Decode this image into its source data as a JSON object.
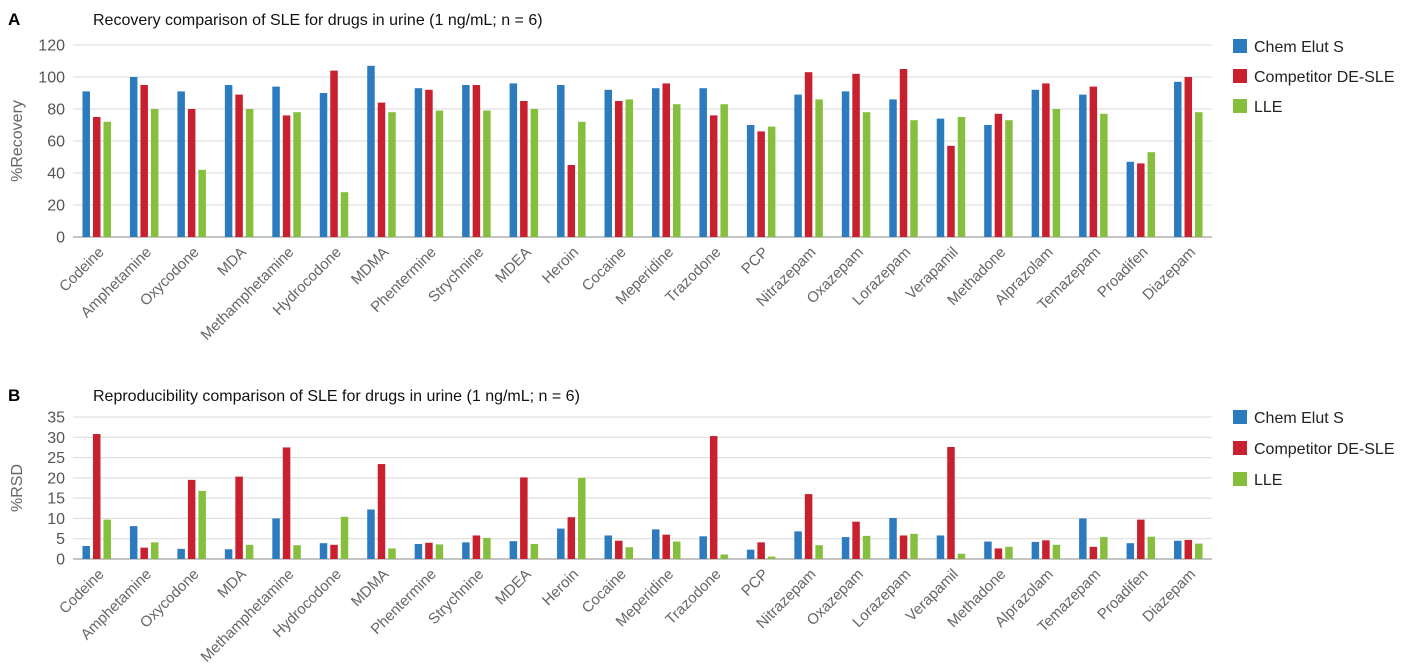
{
  "colors": {
    "chem_elut_s": "#2c7bbf",
    "competitor": "#c8202f",
    "lle": "#86bf3d"
  },
  "chart_data": [
    {
      "type": "bar",
      "panel": "A",
      "title": "Recovery comparison of SLE for drugs in urine (1 ng/mL; n = 6)",
      "ylabel": "%Recovery",
      "xlabel": "",
      "ylim": [
        0,
        120
      ],
      "yticks": [
        0,
        20,
        40,
        60,
        80,
        100,
        120
      ],
      "grid": true,
      "legend_position": "right",
      "categories": [
        "Codeine",
        "Amphetamine",
        "Oxycodone",
        "MDA",
        "Methamphetamine",
        "Hydrocodone",
        "MDMA",
        "Phentermine",
        "Strychnine",
        "MDEA",
        "Heroin",
        "Cocaine",
        "Meperidine",
        "Trazodone",
        "PCP",
        "Nitrazepam",
        "Oxazepam",
        "Lorazepam",
        "Verapamil",
        "Methadone",
        "Alprazolam",
        "Temazepam",
        "Proadifen",
        "Diazepam"
      ],
      "series": [
        {
          "name": "Chem Elut S",
          "color": "#2c7bbf",
          "values": [
            91,
            100,
            91,
            95,
            94,
            90,
            107,
            93,
            95,
            96,
            95,
            92,
            93,
            93,
            70,
            89,
            91,
            86,
            74,
            70,
            92,
            89,
            47,
            97
          ]
        },
        {
          "name": "Competitor DE-SLE",
          "color": "#c8202f",
          "values": [
            75,
            95,
            80,
            89,
            76,
            104,
            84,
            92,
            95,
            85,
            45,
            85,
            96,
            76,
            66,
            103,
            102,
            105,
            57,
            77,
            96,
            94,
            46,
            100
          ]
        },
        {
          "name": "LLE",
          "color": "#86bf3d",
          "values": [
            72,
            80,
            42,
            80,
            78,
            28,
            78,
            79,
            79,
            80,
            72,
            86,
            83,
            83,
            69,
            86,
            78,
            73,
            75,
            73,
            80,
            77,
            53,
            78
          ]
        }
      ]
    },
    {
      "type": "bar",
      "panel": "B",
      "title": "Reproducibility comparison of SLE for drugs in urine (1 ng/mL; n = 6)",
      "ylabel": "%RSD",
      "xlabel": "",
      "ylim": [
        0,
        35
      ],
      "yticks": [
        0,
        5,
        10,
        15,
        20,
        25,
        30,
        35
      ],
      "grid": true,
      "legend_position": "right",
      "categories": [
        "Codeine",
        "Amphetamine",
        "Oxycodone",
        "MDA",
        "Methamphetamine",
        "Hydrocodone",
        "MDMA",
        "Phentermine",
        "Strychnine",
        "MDEA",
        "Heroin",
        "Cocaine",
        "Meperidine",
        "Trazodone",
        "PCP",
        "Nitrazepam",
        "Oxazepam",
        "Lorazepam",
        "Verapamil",
        "Methadone",
        "Alprazolam",
        "Temazepam",
        "Proadifen",
        "Diazepam"
      ],
      "series": [
        {
          "name": "Chem Elut S",
          "color": "#2c7bbf",
          "values": [
            3.2,
            8.1,
            2.5,
            2.4,
            10,
            3.9,
            12.2,
            3.7,
            4.1,
            4.4,
            7.5,
            5.8,
            7.3,
            5.6,
            2.3,
            6.8,
            5.4,
            10.1,
            5.8,
            4.3,
            4.2,
            10,
            3.9,
            4.5
          ]
        },
        {
          "name": "Competitor DE-SLE",
          "color": "#c8202f",
          "values": [
            30.8,
            2.8,
            19.5,
            20.3,
            27.5,
            3.5,
            23.4,
            4,
            5.8,
            20.1,
            10.3,
            4.5,
            6,
            30.3,
            4.1,
            16,
            9.2,
            5.8,
            27.6,
            2.6,
            4.6,
            3,
            9.7,
            4.7
          ]
        },
        {
          "name": "LLE",
          "color": "#86bf3d",
          "values": [
            9.7,
            4.1,
            16.8,
            3.5,
            3.4,
            10.4,
            2.6,
            3.6,
            5.2,
            3.7,
            20,
            2.9,
            4.3,
            1.1,
            0.6,
            3.4,
            5.7,
            6.2,
            1.3,
            3,
            3.5,
            5.4,
            5.5,
            3.8
          ]
        }
      ]
    }
  ]
}
